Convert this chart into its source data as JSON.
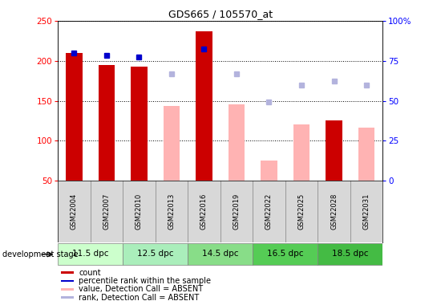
{
  "title": "GDS665 / 105570_at",
  "samples": [
    "GSM22004",
    "GSM22007",
    "GSM22010",
    "GSM22013",
    "GSM22016",
    "GSM22019",
    "GSM22022",
    "GSM22025",
    "GSM22028",
    "GSM22031"
  ],
  "bar_values": [
    210,
    195,
    193,
    null,
    237,
    null,
    null,
    null,
    125,
    null
  ],
  "bar_absent_values": [
    null,
    null,
    null,
    144,
    null,
    146,
    75,
    120,
    null,
    116
  ],
  "rank_present": [
    210,
    207,
    205,
    null,
    215,
    null,
    null,
    null,
    null,
    null
  ],
  "rank_absent": [
    null,
    null,
    null,
    184,
    null,
    184,
    149,
    170,
    175,
    170
  ],
  "bar_color": "#cc0000",
  "bar_absent_color": "#ffb3b3",
  "rank_present_color": "#0000cc",
  "rank_absent_color": "#b3b3dd",
  "ylim_left": [
    50,
    250
  ],
  "ylim_right": [
    0,
    100
  ],
  "y_ticks_left": [
    50,
    100,
    150,
    200,
    250
  ],
  "y_ticks_right": [
    0,
    25,
    50,
    75,
    100
  ],
  "groups": [
    {
      "label": "11.5 dpc",
      "indices": [
        0,
        1
      ],
      "color": "#ccffcc"
    },
    {
      "label": "12.5 dpc",
      "indices": [
        2,
        3
      ],
      "color": "#aaeebb"
    },
    {
      "label": "14.5 dpc",
      "indices": [
        4,
        5
      ],
      "color": "#88dd88"
    },
    {
      "label": "16.5 dpc",
      "indices": [
        6,
        7
      ],
      "color": "#55cc55"
    },
    {
      "label": "18.5 dpc",
      "indices": [
        8,
        9
      ],
      "color": "#44bb44"
    }
  ],
  "legend_items": [
    {
      "label": "count",
      "color": "#cc0000"
    },
    {
      "label": "percentile rank within the sample",
      "color": "#0000cc"
    },
    {
      "label": "value, Detection Call = ABSENT",
      "color": "#ffb3b3"
    },
    {
      "label": "rank, Detection Call = ABSENT",
      "color": "#b3b3dd"
    }
  ],
  "sample_area_color": "#d8d8d8",
  "bar_width": 0.5,
  "background_color": "#ffffff"
}
